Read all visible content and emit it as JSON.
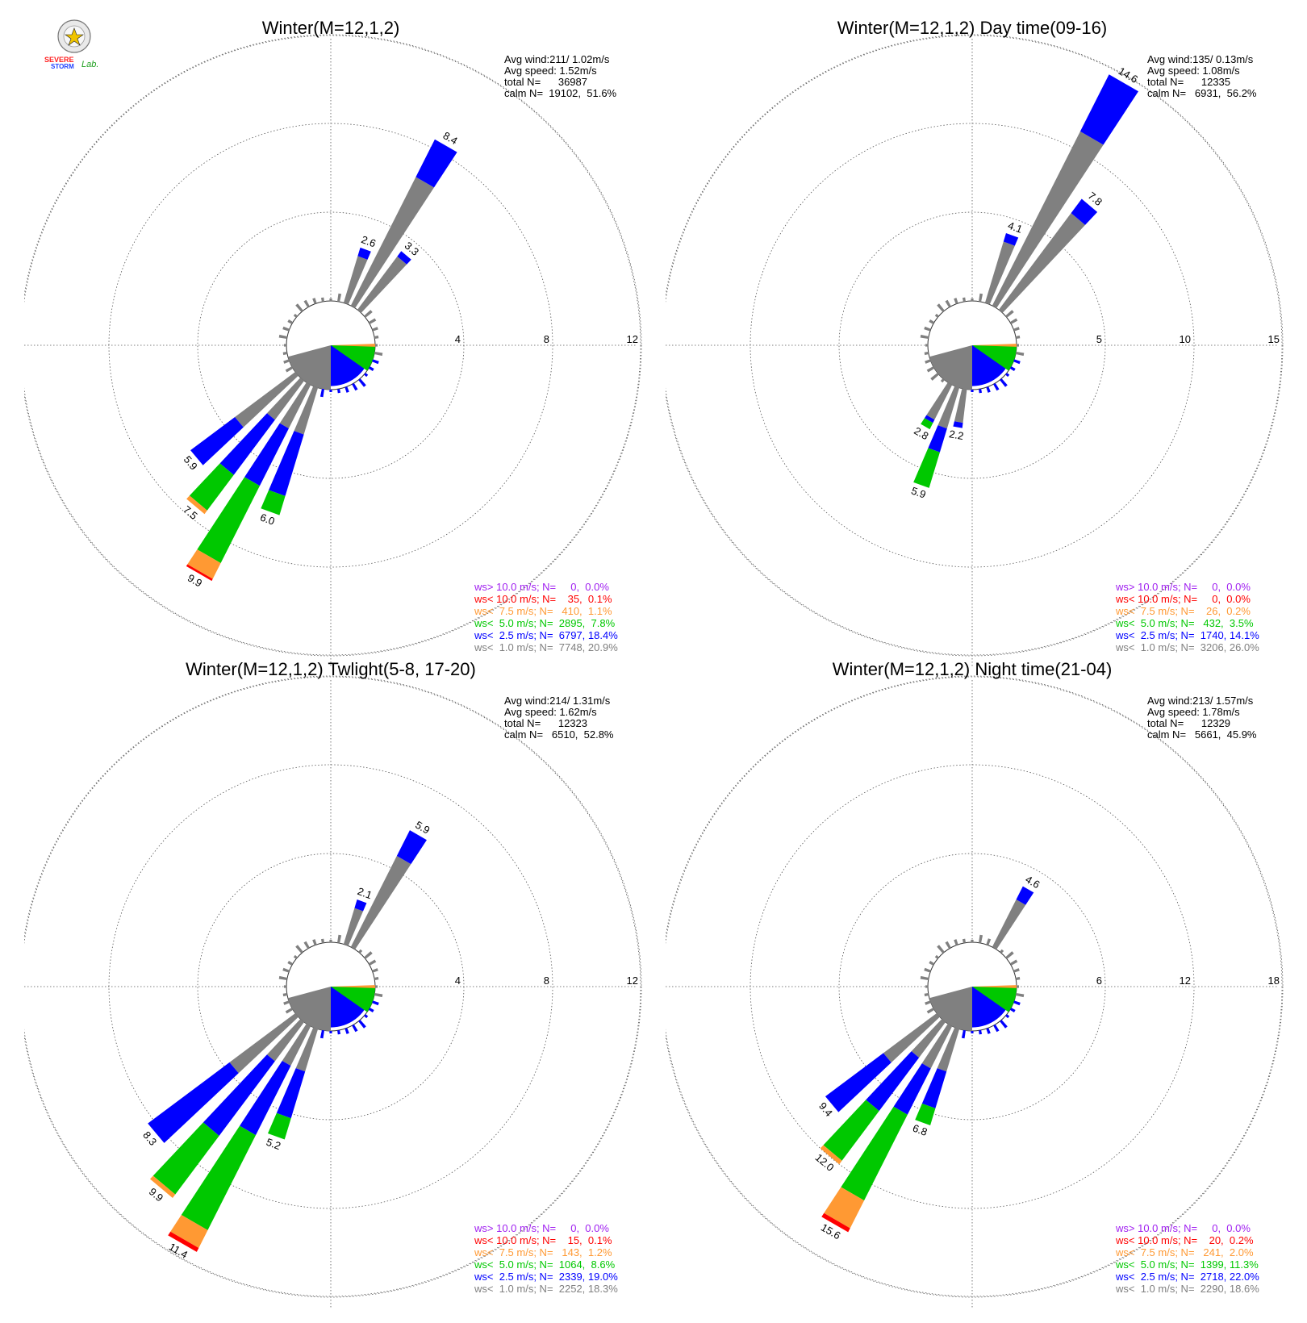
{
  "logo": {
    "text_line1": "SEVERE",
    "text_line2": "STORM",
    "text_line3": "Lab."
  },
  "speed_classes": [
    {
      "key": "c1",
      "color": "#808080"
    },
    {
      "key": "c2",
      "color": "#0000ff"
    },
    {
      "key": "c3",
      "color": "#00c800"
    },
    {
      "key": "c4",
      "color": "#ff9933"
    },
    {
      "key": "c5",
      "color": "#ff0000"
    },
    {
      "key": "c6",
      "color": "#a020f0"
    }
  ],
  "chart_data": [
    {
      "type": "wind-rose",
      "title": "Winter(M=12,1,2)",
      "rings": [
        "4",
        "8",
        "12"
      ],
      "ring_values": [
        4,
        8,
        12
      ],
      "stats": [
        "Avg wind:211/ 1.02m/s",
        "Avg speed: 1.52m/s",
        "total N=      36987",
        "calm N=  19102,  51.6%"
      ],
      "legend": [
        {
          "text": "ws> 10.0 m/s; N=     0,  0.0%",
          "color": "#a020f0"
        },
        {
          "text": "ws< 10.0 m/s; N=    35,  0.1%",
          "color": "#ff0000"
        },
        {
          "text": "ws<  7.5 m/s; N=   410,  1.1%",
          "color": "#ff9933"
        },
        {
          "text": "ws<  5.0 m/s; N=  2895,  7.8%",
          "color": "#00c800"
        },
        {
          "text": "ws<  2.5 m/s; N=  6797, 18.4%",
          "color": "#0000ff"
        },
        {
          "text": "ws<  1.0 m/s; N=  7748, 20.9%",
          "color": "#808080"
        }
      ],
      "petals": [
        {
          "dir": 20,
          "total": 2.6,
          "label": "2.6",
          "segs": [
            2.2,
            0.4
          ]
        },
        {
          "dir": 30,
          "total": 8.4,
          "label": "8.4",
          "segs": [
            6.5,
            1.9
          ]
        },
        {
          "dir": 40,
          "total": 3.3,
          "label": "3.3",
          "segs": [
            3.0,
            0.3
          ]
        },
        {
          "dir": 210,
          "total": 9.9,
          "label": "9.9",
          "segs": [
            2.2,
            2.9,
            3.9,
            0.8,
            0.1
          ]
        },
        {
          "dir": 220,
          "total": 7.5,
          "label": "7.5",
          "segs": [
            2.2,
            3.1,
            2.0,
            0.2
          ]
        },
        {
          "dir": 230,
          "total": 5.9,
          "label": "5.9",
          "segs": [
            3.4,
            2.5
          ]
        },
        {
          "dir": 200,
          "total": 6.0,
          "label": "6.0",
          "segs": [
            2.2,
            2.9,
            0.9
          ]
        }
      ]
    },
    {
      "type": "wind-rose",
      "title": "Winter(M=12,1,2) Day time(09-16)",
      "rings": [
        "5",
        "10",
        "15"
      ],
      "ring_values": [
        5,
        10,
        15
      ],
      "stats": [
        "Avg wind:135/ 0.13m/s",
        "Avg speed: 1.08m/s",
        "total N=      12335",
        "calm N=   6931,  56.2%"
      ],
      "legend": [
        {
          "text": "ws> 10.0 m/s; N=     0,  0.0%",
          "color": "#a020f0"
        },
        {
          "text": "ws< 10.0 m/s; N=     0,  0.0%",
          "color": "#ff0000"
        },
        {
          "text": "ws<  7.5 m/s; N=    26,  0.2%",
          "color": "#ff9933"
        },
        {
          "text": "ws<  5.0 m/s; N=   432,  3.5%",
          "color": "#00c800"
        },
        {
          "text": "ws<  2.5 m/s; N=  1740, 14.1%",
          "color": "#0000ff"
        },
        {
          "text": "ws<  1.0 m/s; N=  3206, 26.0%",
          "color": "#808080"
        }
      ],
      "petals": [
        {
          "dir": 20,
          "total": 4.1,
          "label": "4.1",
          "segs": [
            3.6,
            0.5
          ]
        },
        {
          "dir": 30,
          "total": 14.6,
          "label": "14.6",
          "segs": [
            11.0,
            3.6
          ]
        },
        {
          "dir": 40,
          "total": 7.8,
          "label": "7.8",
          "segs": [
            6.8,
            1.0
          ]
        },
        {
          "dir": 200,
          "total": 5.9,
          "label": "5.9",
          "segs": [
            2.4,
            1.4,
            2.1
          ]
        },
        {
          "dir": 210,
          "total": 2.8,
          "label": "2.8",
          "segs": [
            2.2,
            0.2,
            0.4
          ]
        },
        {
          "dir": 190,
          "total": 2.2,
          "label": "2.2",
          "segs": [
            1.9,
            0.3
          ]
        }
      ]
    },
    {
      "type": "wind-rose",
      "title": "Winter(M=12,1,2) Twlight(5-8, 17-20)",
      "rings": [
        "4",
        "8",
        "12"
      ],
      "ring_values": [
        4,
        8,
        12
      ],
      "stats": [
        "Avg wind:214/ 1.31m/s",
        "Avg speed: 1.62m/s",
        "total N=      12323",
        "calm N=   6510,  52.8%"
      ],
      "legend": [
        {
          "text": "ws> 10.0 m/s; N=     0,  0.0%",
          "color": "#a020f0"
        },
        {
          "text": "ws< 10.0 m/s; N=    15,  0.1%",
          "color": "#ff0000"
        },
        {
          "text": "ws<  7.5 m/s; N=   143,  1.2%",
          "color": "#ff9933"
        },
        {
          "text": "ws<  5.0 m/s; N=  1064,  8.6%",
          "color": "#00c800"
        },
        {
          "text": "ws<  2.5 m/s; N=  2339, 19.0%",
          "color": "#0000ff"
        },
        {
          "text": "ws<  1.0 m/s; N=  2252, 18.3%",
          "color": "#808080"
        }
      ],
      "petals": [
        {
          "dir": 20,
          "total": 2.1,
          "label": "2.1",
          "segs": [
            1.7,
            0.4
          ]
        },
        {
          "dir": 30,
          "total": 5.9,
          "label": "5.9",
          "segs": [
            4.6,
            1.3
          ]
        },
        {
          "dir": 210,
          "total": 11.4,
          "label": "11.4",
          "segs": [
            2.0,
            3.5,
            4.8,
            0.9,
            0.2
          ]
        },
        {
          "dir": 220,
          "total": 9.9,
          "label": "9.9",
          "segs": [
            2.2,
            4.2,
            3.3,
            0.2
          ]
        },
        {
          "dir": 230,
          "total": 8.3,
          "label": "8.3",
          "segs": [
            3.7,
            4.6
          ]
        },
        {
          "dir": 200,
          "total": 5.2,
          "label": "5.2",
          "segs": [
            2.0,
            2.2,
            1.0
          ]
        }
      ]
    },
    {
      "type": "wind-rose",
      "title": "Winter(M=12,1,2) Night time(21-04)",
      "rings": [
        "6",
        "12",
        "18"
      ],
      "ring_values": [
        6,
        12,
        18
      ],
      "stats": [
        "Avg wind:213/ 1.57m/s",
        "Avg speed: 1.78m/s",
        "total N=      12329",
        "calm N=   5661,  45.9%"
      ],
      "legend": [
        {
          "text": "ws> 10.0 m/s; N=     0,  0.0%",
          "color": "#a020f0"
        },
        {
          "text": "ws< 10.0 m/s; N=    20,  0.2%",
          "color": "#ff0000"
        },
        {
          "text": "ws<  7.5 m/s; N=   241,  2.0%",
          "color": "#ff9933"
        },
        {
          "text": "ws<  5.0 m/s; N=  1399, 11.3%",
          "color": "#00c800"
        },
        {
          "text": "ws<  2.5 m/s; N=  2718, 22.0%",
          "color": "#0000ff"
        },
        {
          "text": "ws<  1.0 m/s; N=  2290, 18.6%",
          "color": "#808080"
        }
      ],
      "petals": [
        {
          "dir": 30,
          "total": 4.6,
          "label": "4.6",
          "segs": [
            3.6,
            1.0
          ]
        },
        {
          "dir": 210,
          "total": 15.6,
          "label": "15.6",
          "segs": [
            3.2,
            3.5,
            6.5,
            2.1,
            0.3
          ]
        },
        {
          "dir": 220,
          "total": 12.0,
          "label": "12.0",
          "segs": [
            3.0,
            4.5,
            4.2,
            0.3
          ]
        },
        {
          "dir": 230,
          "total": 9.4,
          "label": "9.4",
          "segs": [
            4.5,
            4.9
          ]
        },
        {
          "dir": 200,
          "total": 6.8,
          "label": "6.8",
          "segs": [
            3.0,
            2.6,
            1.2
          ]
        }
      ]
    }
  ]
}
